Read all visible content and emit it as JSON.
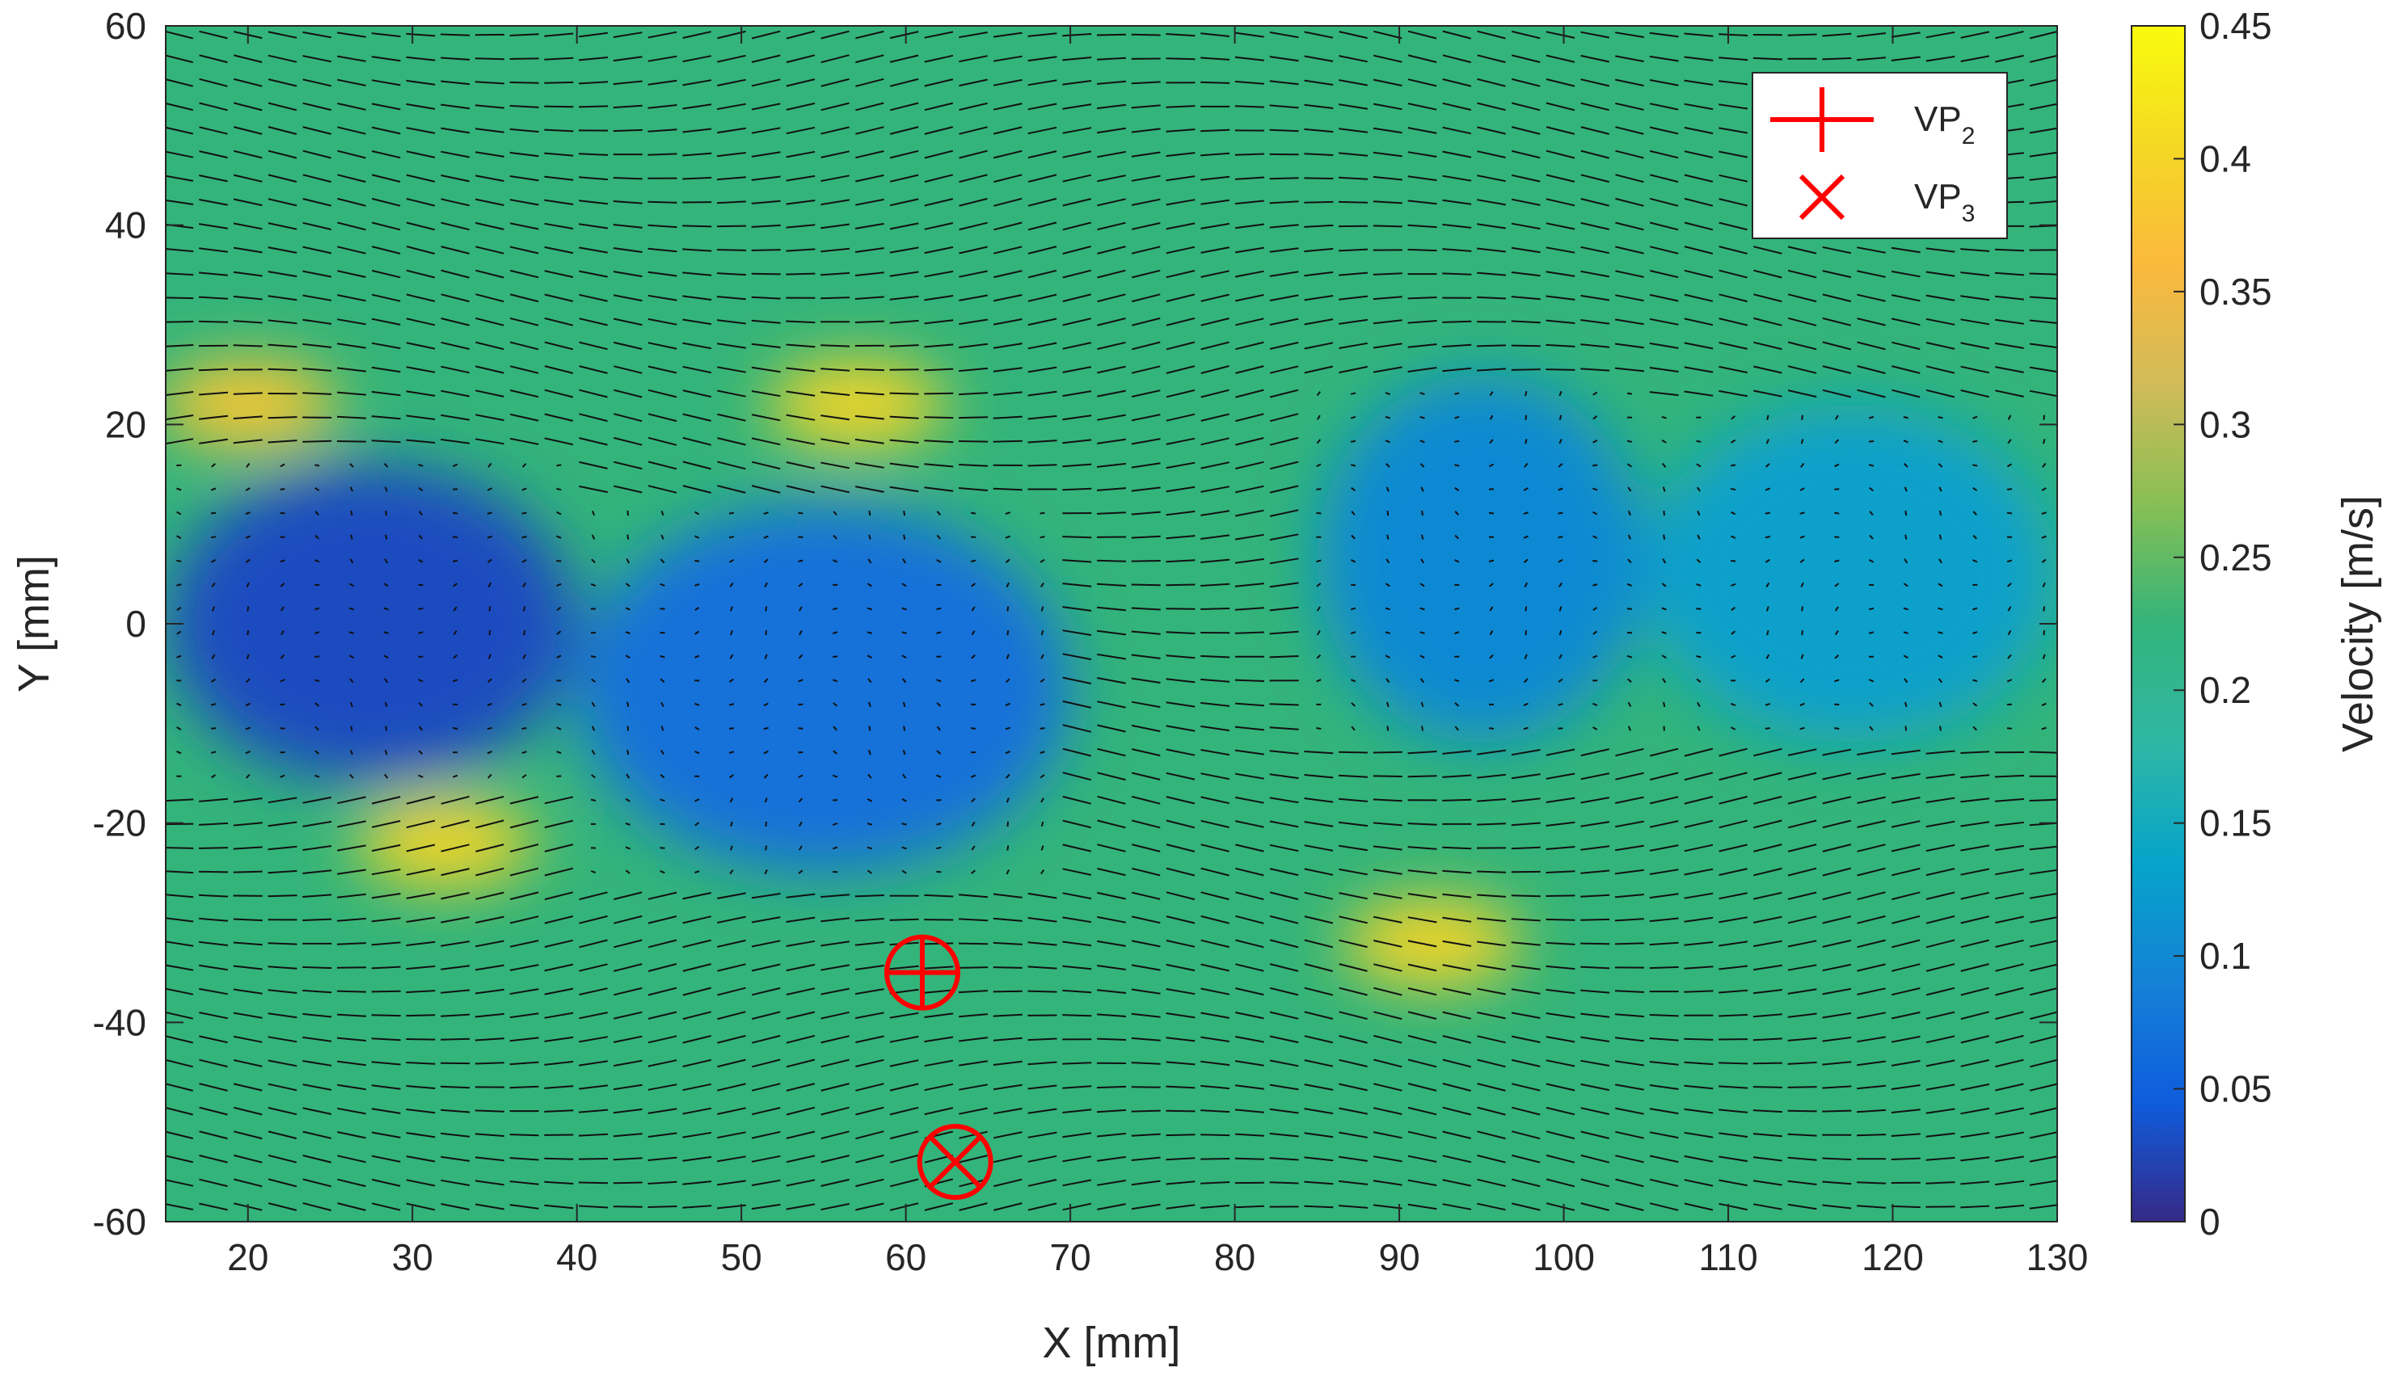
{
  "chart_data": {
    "type": "heatmap",
    "subtype": "velocity vector field (PIV) with colored velocity magnitude",
    "title": "",
    "xlabel": "X [mm]",
    "ylabel": "Y [mm]",
    "xlim": [
      15,
      130
    ],
    "ylim": [
      -60,
      60
    ],
    "x_ticks": [
      "20",
      "30",
      "40",
      "50",
      "60",
      "70",
      "80",
      "90",
      "100",
      "110",
      "120",
      "130"
    ],
    "y_ticks": [
      "60",
      "40",
      "20",
      "0",
      "-20",
      "-40",
      "-60"
    ],
    "colorbar": {
      "label": "Velocity [m/s]",
      "colormap": "parula",
      "range": [
        0,
        0.45
      ],
      "ticks": [
        "0",
        "0.05",
        "0.1",
        "0.15",
        "0.2",
        "0.25",
        "0.3",
        "0.35",
        "0.4",
        "0.45"
      ]
    },
    "background_color": "#33b47a",
    "low_velocity_regions": [
      {
        "x_range": [
          15,
          40
        ],
        "y_range": [
          -16,
          16
        ],
        "velocity": 0.03
      },
      {
        "x_range": [
          40,
          70
        ],
        "y_range": [
          -25,
          12
        ],
        "velocity": 0.07
      },
      {
        "x_range": [
          85,
          105
        ],
        "y_range": [
          -12,
          25
        ],
        "velocity": 0.1
      },
      {
        "x_range": [
          105,
          130
        ],
        "y_range": [
          -12,
          22
        ],
        "velocity": 0.13
      }
    ],
    "high_velocity_regions": [
      {
        "x": 32,
        "y": -22,
        "velocity": 0.4
      },
      {
        "x": 57,
        "y": 22,
        "velocity": 0.4
      },
      {
        "x": 92,
        "y": -32,
        "velocity": 0.4
      },
      {
        "x": 20,
        "y": 22,
        "velocity": 0.38
      }
    ],
    "markers": [
      {
        "name": "VP",
        "subscript": "2",
        "symbol": "plus",
        "x": 61,
        "y": -35,
        "color": "#ff0000"
      },
      {
        "name": "VP",
        "subscript": "3",
        "symbol": "x",
        "x": 63,
        "y": -54,
        "color": "#ff0000"
      }
    ],
    "legend": {
      "placement": "top-right"
    }
  }
}
